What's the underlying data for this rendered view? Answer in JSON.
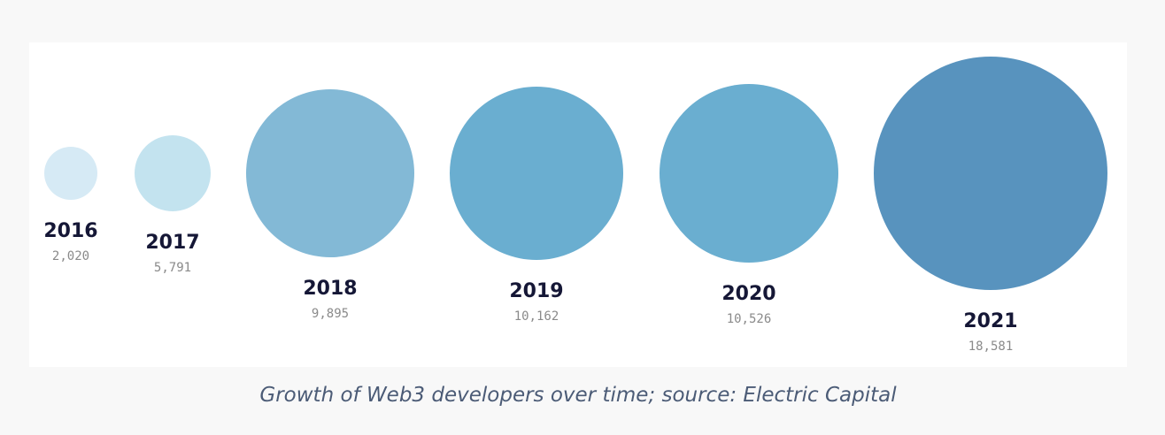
{
  "chart_data": {
    "type": "bubble",
    "title": "",
    "caption": "Growth of Web3 developers over time; source: Electric Capital",
    "points": [
      {
        "year": "2016",
        "value": 2020,
        "value_label": "2,020",
        "color": "#d6eaf5"
      },
      {
        "year": "2017",
        "value": 5791,
        "value_label": "5,791",
        "color": "#c3e3ef"
      },
      {
        "year": "2018",
        "value": 9895,
        "value_label": "9,895",
        "color": "#83b9d6"
      },
      {
        "year": "2019",
        "value": 10162,
        "value_label": "10,162",
        "color": "#6aaed0"
      },
      {
        "year": "2020",
        "value": 10526,
        "value_label": "10,526",
        "color": "#6aaed0"
      },
      {
        "year": "2021",
        "value": 18581,
        "value_label": "18,581",
        "color": "#5893be"
      }
    ]
  }
}
